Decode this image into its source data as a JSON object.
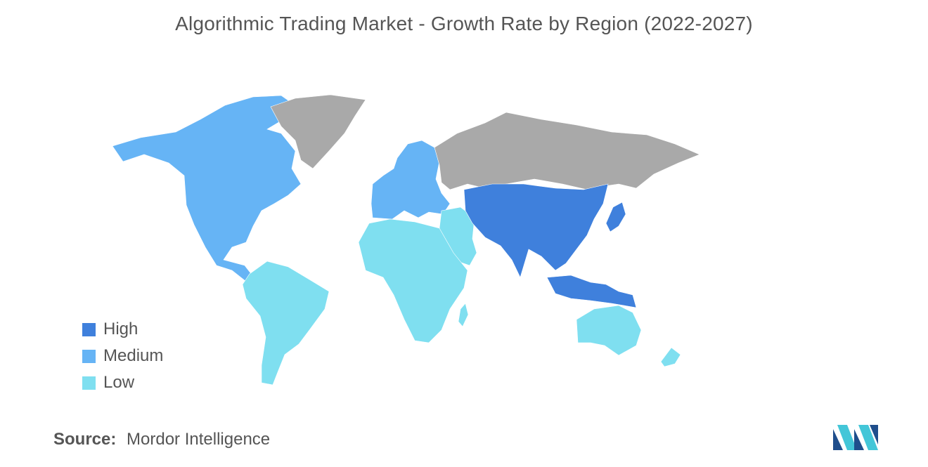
{
  "title": "Algorithmic Trading Market - Growth Rate by Region (2022-2027)",
  "legend": [
    {
      "label": "High",
      "color": "#3f80dc"
    },
    {
      "label": "Medium",
      "color": "#66b4f5"
    },
    {
      "label": "Low",
      "color": "#7fdff0"
    }
  ],
  "no_data_color": "#a9a9a9",
  "source": {
    "key": "Source:",
    "value": "Mordor Intelligence"
  },
  "logo_icon": "mordor-intelligence-logo",
  "regions": {
    "north_america": "Medium",
    "europe": "Medium",
    "south_america": "Low",
    "africa": "Low",
    "middle_east": "Low",
    "asia_pacific": "High",
    "oceania": "Low",
    "russia": "no-data",
    "greenland": "no-data"
  }
}
